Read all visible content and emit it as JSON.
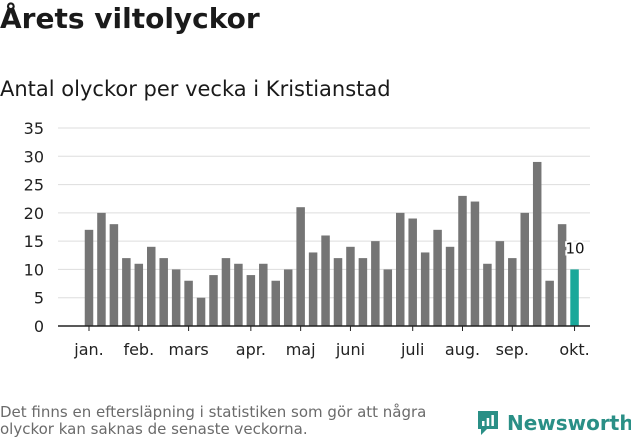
{
  "header": {
    "title": "Årets viltolyckor",
    "subtitle": "Antal olyckor per vecka i Kristianstad"
  },
  "footer": {
    "note": "Det finns en eftersläpning i statistiken som gör att några olyckor kan saknas de senaste veckorna.",
    "brand": "Newsworthy"
  },
  "colors": {
    "bar": "#757575",
    "highlight": "#1aa89a",
    "grid": "#dddddd",
    "axis": "#222222",
    "brand": "#2a8f86"
  },
  "chart_data": {
    "type": "bar",
    "title": "",
    "xlabel": "",
    "ylabel": "",
    "ylim": [
      0,
      35
    ],
    "yticks": [
      "0",
      "5",
      "10",
      "15",
      "20",
      "25",
      "30",
      "35"
    ],
    "grid": true,
    "legend": "none",
    "values": [
      17,
      20,
      18,
      12,
      11,
      14,
      12,
      10,
      8,
      5,
      9,
      12,
      11,
      9,
      11,
      8,
      10,
      21,
      13,
      16,
      12,
      14,
      12,
      15,
      10,
      20,
      19,
      13,
      17,
      14,
      23,
      22,
      11,
      15,
      12,
      20,
      29,
      8,
      18,
      10
    ],
    "month_labels": [
      {
        "label": "jan.",
        "index": 0
      },
      {
        "label": "feb.",
        "index": 4
      },
      {
        "label": "mars",
        "index": 8
      },
      {
        "label": "apr.",
        "index": 13
      },
      {
        "label": "maj",
        "index": 17
      },
      {
        "label": "juni",
        "index": 21
      },
      {
        "label": "juli",
        "index": 26
      },
      {
        "label": "aug.",
        "index": 30
      },
      {
        "label": "sep.",
        "index": 34
      },
      {
        "label": "okt.",
        "index": 39
      }
    ],
    "highlight_index": 39,
    "data_label": {
      "index": 39,
      "text": "10"
    }
  }
}
